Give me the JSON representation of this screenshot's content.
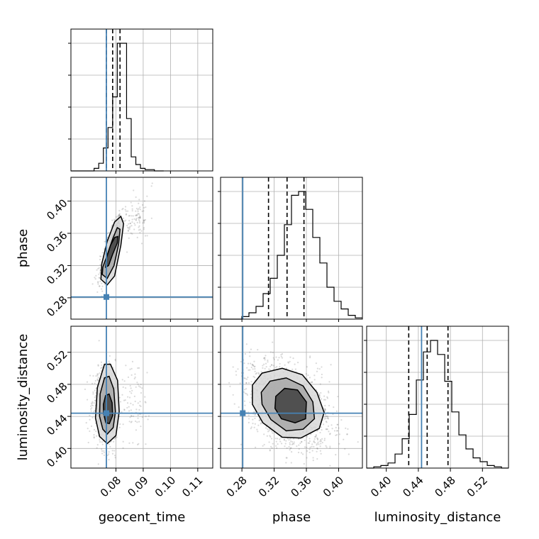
{
  "chart_data": {
    "type": "corner",
    "parameters": [
      "geocent_time",
      "phase",
      "luminosity_distance"
    ],
    "axis_labels": {
      "x": [
        "geocent_time",
        "phase",
        "luminosity_distance"
      ],
      "y": [
        "",
        "phase",
        "luminosity_distance"
      ]
    },
    "grid": true,
    "truths": {
      "geocent_time": 0.0765,
      "phase": 0.281,
      "luminosity_distance": 0.444
    },
    "truth_color": "#4682b4",
    "axes": {
      "geocent_time": {
        "range": [
          0.0635,
          0.1155
        ],
        "ticks": [
          0.08,
          0.09,
          0.1,
          0.11
        ],
        "tick_labels": [
          "0.08",
          "0.09",
          "0.10",
          "0.11"
        ]
      },
      "phase": {
        "range": [
          0.2535,
          0.4295
        ],
        "ticks": [
          0.28,
          0.32,
          0.36,
          0.4
        ],
        "tick_labels": [
          "0.28",
          "0.32",
          "0.36",
          "0.40"
        ]
      },
      "luminosity_distance": {
        "range": [
          0.3755,
          0.5525
        ],
        "ticks": [
          0.4,
          0.44,
          0.48,
          0.52
        ],
        "tick_labels": [
          "0.40",
          "0.44",
          "0.48",
          "0.52"
        ]
      }
    },
    "histograms": {
      "geocent_time": {
        "edges": [
          0.0635,
          0.0652,
          0.0669,
          0.0686,
          0.0703,
          0.072,
          0.0737,
          0.0754,
          0.0771,
          0.0788,
          0.0805,
          0.0822,
          0.0839,
          0.0856,
          0.0873,
          0.089,
          0.0907,
          0.0924,
          0.0941,
          0.0958,
          0.0975
        ],
        "counts": [
          0,
          0,
          0,
          0,
          0,
          2,
          6,
          18,
          34,
          58,
          100,
          100,
          41,
          11,
          5,
          2,
          1,
          1,
          0,
          0
        ],
        "quantiles": [
          0.0765,
          0.0788,
          0.0815
        ]
      },
      "phase": {
        "edges": [
          0.2535,
          0.2623,
          0.2711,
          0.2799,
          0.2887,
          0.2975,
          0.3063,
          0.3151,
          0.3239,
          0.3327,
          0.3415,
          0.3503,
          0.3591,
          0.3679,
          0.3767,
          0.3855,
          0.3943,
          0.4031,
          0.4119,
          0.4207,
          0.4295
        ],
        "counts": [
          0,
          0,
          0,
          2,
          5,
          10,
          20,
          32,
          50,
          74,
          97,
          100,
          86,
          64,
          44,
          25,
          14,
          8,
          3,
          1
        ],
        "quantiles": [
          0.313,
          0.336,
          0.357
        ]
      },
      "luminosity_distance": {
        "edges": [
          0.3755,
          0.3844,
          0.3932,
          0.4021,
          0.4109,
          0.4198,
          0.4286,
          0.4375,
          0.4463,
          0.4552,
          0.464,
          0.4729,
          0.4817,
          0.4906,
          0.4994,
          0.5083,
          0.5171,
          0.526,
          0.5348,
          0.5437,
          0.5525
        ],
        "counts": [
          0,
          1,
          2,
          4,
          11,
          23,
          42,
          69,
          91,
          100,
          89,
          68,
          44,
          26,
          15,
          8,
          5,
          2,
          1,
          0
        ],
        "quantiles": [
          0.428,
          0.451,
          0.477
        ]
      }
    },
    "pairs": [
      {
        "x": "geocent_time",
        "y": "phase",
        "contours": [
          [
            [
              0.0745,
              0.303
            ],
            [
              0.0768,
              0.296
            ],
            [
              0.0795,
              0.307
            ],
            [
              0.0818,
              0.345
            ],
            [
              0.0828,
              0.372
            ],
            [
              0.0818,
              0.381
            ],
            [
              0.0795,
              0.374
            ],
            [
              0.0768,
              0.35
            ],
            [
              0.0748,
              0.322
            ]
          ],
          [
            [
              0.075,
              0.309
            ],
            [
              0.0768,
              0.304
            ],
            [
              0.0793,
              0.32
            ],
            [
              0.081,
              0.347
            ],
            [
              0.0815,
              0.365
            ],
            [
              0.0805,
              0.367
            ],
            [
              0.0788,
              0.353
            ],
            [
              0.0768,
              0.333
            ],
            [
              0.0752,
              0.318
            ]
          ],
          [
            [
              0.0762,
              0.318
            ],
            [
              0.0773,
              0.32
            ],
            [
              0.0788,
              0.334
            ],
            [
              0.0805,
              0.348
            ],
            [
              0.0807,
              0.356
            ],
            [
              0.0796,
              0.355
            ],
            [
              0.078,
              0.345
            ],
            [
              0.0766,
              0.33
            ]
          ]
        ]
      },
      {
        "x": "geocent_time",
        "y": "luminosity_distance",
        "contours": [
          [
            [
              0.0725,
              0.438
            ],
            [
              0.074,
              0.415
            ],
            [
              0.0768,
              0.406
            ],
            [
              0.08,
              0.416
            ],
            [
              0.0812,
              0.446
            ],
            [
              0.0806,
              0.485
            ],
            [
              0.078,
              0.505
            ],
            [
              0.0758,
              0.505
            ],
            [
              0.0732,
              0.476
            ]
          ],
          [
            [
              0.074,
              0.44
            ],
            [
              0.0752,
              0.424
            ],
            [
              0.0768,
              0.418
            ],
            [
              0.079,
              0.426
            ],
            [
              0.0798,
              0.446
            ],
            [
              0.0792,
              0.474
            ],
            [
              0.0775,
              0.49
            ],
            [
              0.0758,
              0.488
            ],
            [
              0.0742,
              0.468
            ]
          ],
          [
            [
              0.0755,
              0.443
            ],
            [
              0.0763,
              0.432
            ],
            [
              0.0776,
              0.431
            ],
            [
              0.0788,
              0.441
            ],
            [
              0.0786,
              0.457
            ],
            [
              0.0775,
              0.468
            ],
            [
              0.0762,
              0.466
            ],
            [
              0.0754,
              0.455
            ]
          ]
        ]
      },
      {
        "x": "phase",
        "y": "luminosity_distance",
        "contours": [
          [
            [
              0.293,
              0.479
            ],
            [
              0.305,
              0.494
            ],
            [
              0.33,
              0.5
            ],
            [
              0.355,
              0.492
            ],
            [
              0.373,
              0.47
            ],
            [
              0.382,
              0.445
            ],
            [
              0.376,
              0.425
            ],
            [
              0.353,
              0.413
            ],
            [
              0.33,
              0.414
            ],
            [
              0.306,
              0.432
            ],
            [
              0.293,
              0.455
            ]
          ],
          [
            [
              0.304,
              0.47
            ],
            [
              0.315,
              0.484
            ],
            [
              0.335,
              0.488
            ],
            [
              0.356,
              0.478
            ],
            [
              0.368,
              0.458
            ],
            [
              0.37,
              0.437
            ],
            [
              0.356,
              0.424
            ],
            [
              0.335,
              0.422
            ],
            [
              0.316,
              0.436
            ],
            [
              0.305,
              0.455
            ]
          ],
          [
            [
              0.322,
              0.465
            ],
            [
              0.333,
              0.475
            ],
            [
              0.349,
              0.473
            ],
            [
              0.36,
              0.458
            ],
            [
              0.359,
              0.437
            ],
            [
              0.346,
              0.432
            ],
            [
              0.329,
              0.437
            ],
            [
              0.321,
              0.45
            ]
          ]
        ]
      }
    ]
  }
}
